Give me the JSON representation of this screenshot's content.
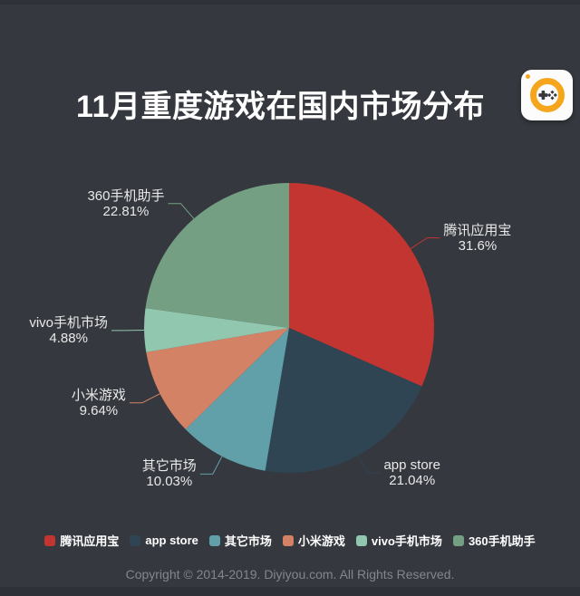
{
  "title": "11月重度游戏在国内市场分布",
  "logo": {
    "icon": "game-controller-in-ring",
    "ring_color": "#f5a61d",
    "pad_color": "#38383f"
  },
  "chart_data": {
    "type": "pie",
    "title": "11月重度游戏在国内市场分布",
    "unit": "%",
    "direction": "clockwise-from-top",
    "center": [
      319,
      362
    ],
    "radius": 160,
    "series": [
      {
        "name": "腾讯应用宝",
        "value": 31.6,
        "label": "31.6%",
        "color": "#c23531"
      },
      {
        "name": "app store",
        "value": 21.04,
        "label": "21.04%",
        "color": "#2f4554"
      },
      {
        "name": "其它市场",
        "value": 10.03,
        "label": "10.03%",
        "color": "#61a0a8"
      },
      {
        "name": "小米游戏",
        "value": 9.64,
        "label": "9.64%",
        "color": "#d48265"
      },
      {
        "name": "vivo手机市场",
        "value": 4.88,
        "label": "4.88%",
        "color": "#91c7ae"
      },
      {
        "name": "360手机助手",
        "value": 22.81,
        "label": "22.81%",
        "color": "#749f83"
      }
    ],
    "legend": [
      "腾讯应用宝",
      "app store",
      "其它市场",
      "小米游戏",
      "vivo手机市场",
      "360手机助手"
    ],
    "legend_position": "bottom",
    "label_line": {
      "radial_length": 22,
      "horizontal_length": 14
    }
  },
  "footer": {
    "copyright": "Copyright © 2014-2019. Diyiyou.com. All Rights Reserved."
  },
  "colors": {
    "background": "#35383e",
    "edge_band": "#2e3137",
    "title_text": "#ffffff",
    "label_text": "#e9e9e9",
    "legend_text": "#ffffff",
    "footer_text": "#84868c"
  }
}
